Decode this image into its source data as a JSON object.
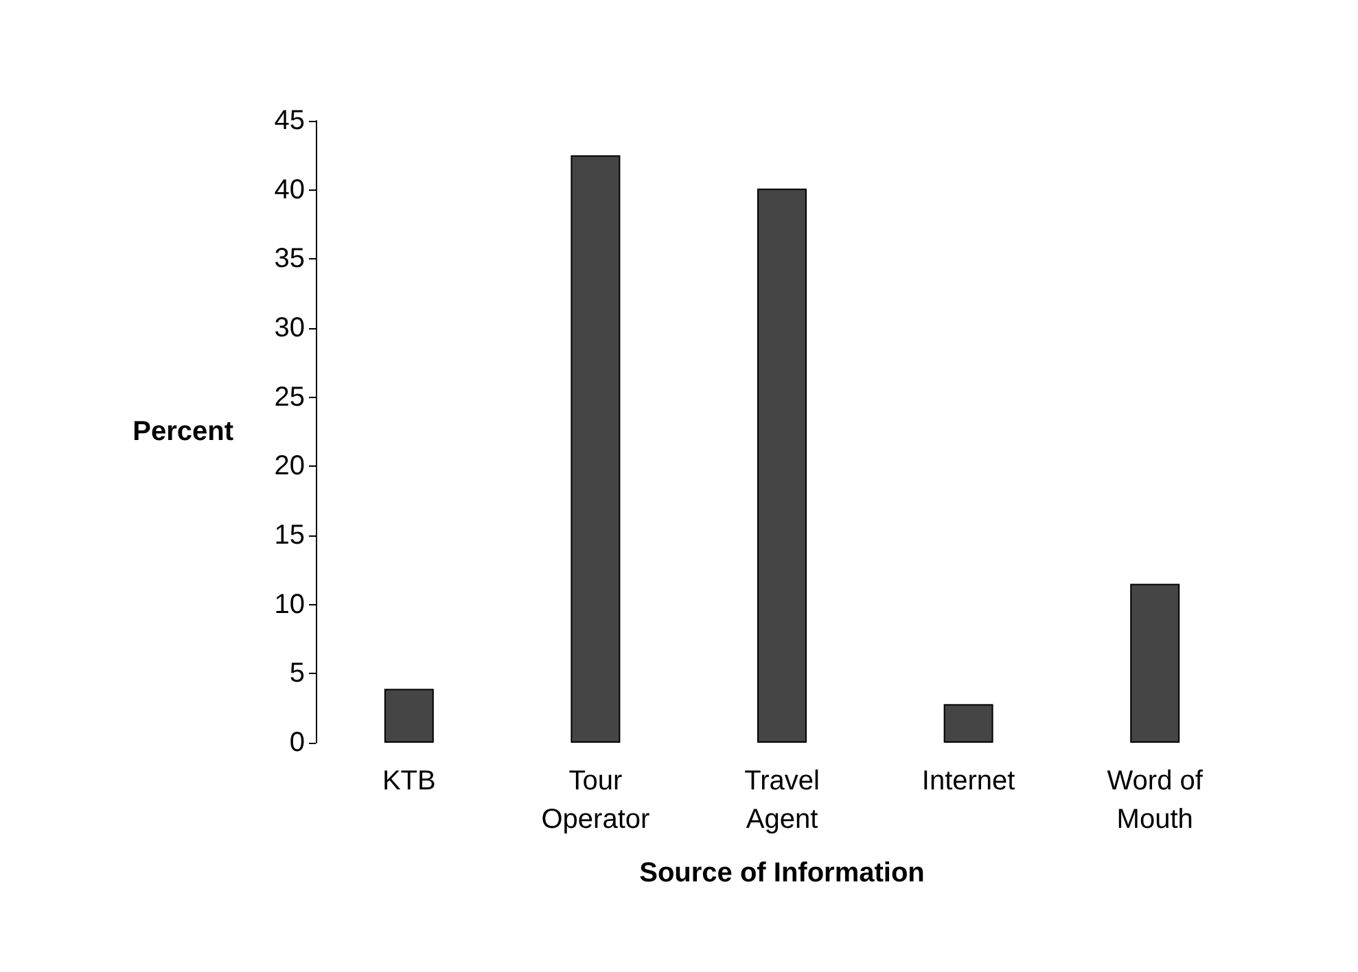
{
  "chart_data": {
    "type": "bar",
    "xlabel": "Source of Information",
    "ylabel": "Percent",
    "categories": [
      "KTB",
      "Tour\nOperator",
      "Travel\nAgent",
      "Internet",
      "Word of\nMouth"
    ],
    "values": [
      3.9,
      42.5,
      40.1,
      2.8,
      11.5
    ],
    "color": "#454545",
    "ylim": [
      0,
      45
    ],
    "yticks": [
      0,
      5,
      10,
      15,
      20,
      25,
      30,
      35,
      40,
      45
    ],
    "grid": false
  }
}
